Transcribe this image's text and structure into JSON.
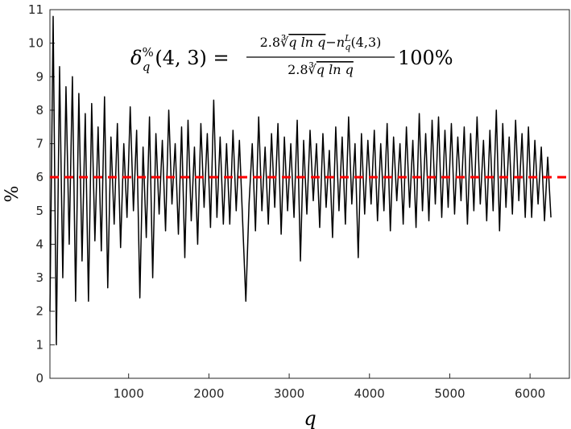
{
  "chart_data": {
    "type": "line",
    "xlabel": "q",
    "ylabel": "%",
    "annotation": {
      "lhs": "δ",
      "lhs_sub": "q",
      "lhs_sup": "%",
      "lhs_rest": "(4, 3) =",
      "num_a": "2.8",
      "num_root": "∛",
      "num_b": "q ln q",
      "num_c": "−n",
      "num_sup": "L",
      "num_sub": "q",
      "num_d": "(4,3)",
      "den_a": "2.8",
      "den_root": "∛",
      "den_b": "q ln q",
      "suffix": "100%"
    },
    "xlim": [
      20,
      6500
    ],
    "ylim": [
      0,
      11
    ],
    "xticks": [
      1000,
      2000,
      3000,
      4000,
      5000,
      6000
    ],
    "yticks": [
      0,
      1,
      2,
      3,
      4,
      5,
      6,
      7,
      8,
      9,
      10,
      11
    ],
    "reference_line": {
      "value": 6,
      "color": "#ff0000"
    },
    "x": [
      20,
      60,
      100,
      140,
      180,
      220,
      260,
      300,
      340,
      380,
      420,
      460,
      500,
      540,
      580,
      620,
      660,
      700,
      740,
      780,
      820,
      860,
      900,
      940,
      980,
      1020,
      1060,
      1100,
      1140,
      1180,
      1220,
      1260,
      1300,
      1340,
      1380,
      1420,
      1460,
      1500,
      1540,
      1580,
      1620,
      1660,
      1700,
      1740,
      1780,
      1820,
      1860,
      1900,
      1940,
      1980,
      2020,
      2060,
      2100,
      2140,
      2180,
      2220,
      2260,
      2300,
      2340,
      2380,
      2420,
      2460,
      2500,
      2540,
      2580,
      2620,
      2660,
      2700,
      2740,
      2780,
      2820,
      2860,
      2900,
      2940,
      2980,
      3020,
      3060,
      3100,
      3140,
      3180,
      3220,
      3260,
      3300,
      3340,
      3380,
      3420,
      3460,
      3500,
      3540,
      3580,
      3620,
      3660,
      3700,
      3740,
      3780,
      3820,
      3860,
      3900,
      3940,
      3980,
      4020,
      4060,
      4100,
      4140,
      4180,
      4220,
      4260,
      4300,
      4340,
      4380,
      4420,
      4460,
      4500,
      4540,
      4580,
      4620,
      4660,
      4700,
      4740,
      4780,
      4820,
      4860,
      4900,
      4940,
      4980,
      5020,
      5060,
      5100,
      5140,
      5180,
      5220,
      5260,
      5300,
      5340,
      5380,
      5420,
      5460,
      5500,
      5540,
      5580,
      5620,
      5660,
      5700,
      5740,
      5780,
      5820,
      5860,
      5900,
      5940,
      5980,
      6020,
      6060,
      6100,
      6140,
      6180,
      6220,
      6260
    ],
    "series": [
      {
        "name": "delta",
        "color": "#000000",
        "values": [
          2.0,
          10.8,
          1.0,
          9.3,
          3.0,
          8.7,
          4.0,
          9.0,
          2.3,
          8.5,
          3.5,
          7.9,
          2.3,
          8.2,
          4.1,
          7.5,
          3.8,
          8.4,
          2.7,
          7.2,
          4.6,
          7.6,
          3.9,
          7.0,
          4.8,
          8.1,
          5.0,
          7.4,
          2.4,
          6.9,
          4.2,
          7.8,
          3.0,
          7.3,
          4.9,
          7.1,
          4.4,
          8.0,
          5.2,
          7.0,
          4.3,
          7.5,
          3.6,
          7.7,
          4.7,
          6.9,
          4.0,
          7.6,
          5.1,
          7.3,
          4.5,
          8.3,
          4.8,
          7.2,
          4.6,
          7.0,
          4.6,
          7.4,
          5.0,
          7.1,
          4.7,
          2.3,
          5.2,
          7.0,
          4.4,
          7.8,
          5.0,
          6.9,
          4.6,
          7.3,
          5.1,
          7.6,
          4.3,
          7.2,
          5.0,
          7.0,
          4.8,
          7.7,
          3.5,
          7.1,
          4.9,
          7.4,
          5.3,
          7.0,
          4.5,
          7.3,
          5.1,
          6.8,
          4.2,
          7.5,
          5.0,
          7.2,
          4.6,
          7.8,
          5.2,
          7.0,
          3.6,
          7.3,
          4.9,
          7.1,
          5.2,
          7.4,
          4.7,
          7.0,
          5.0,
          7.6,
          4.4,
          7.2,
          5.3,
          7.0,
          4.6,
          7.5,
          5.1,
          7.1,
          4.5,
          7.9,
          5.0,
          7.3,
          4.7,
          7.7,
          5.2,
          7.8,
          4.8,
          7.4,
          5.1,
          7.6,
          4.9,
          7.2,
          5.3,
          7.5,
          4.6,
          7.3,
          5.0,
          7.8,
          5.2,
          7.1,
          4.7,
          7.4,
          5.0,
          8.0,
          4.4,
          7.6,
          5.1,
          7.2,
          4.9,
          7.7,
          5.3,
          7.3,
          4.8,
          7.5,
          4.8,
          7.1,
          5.2,
          6.9,
          4.7,
          6.6,
          4.8
        ]
      }
    ]
  }
}
